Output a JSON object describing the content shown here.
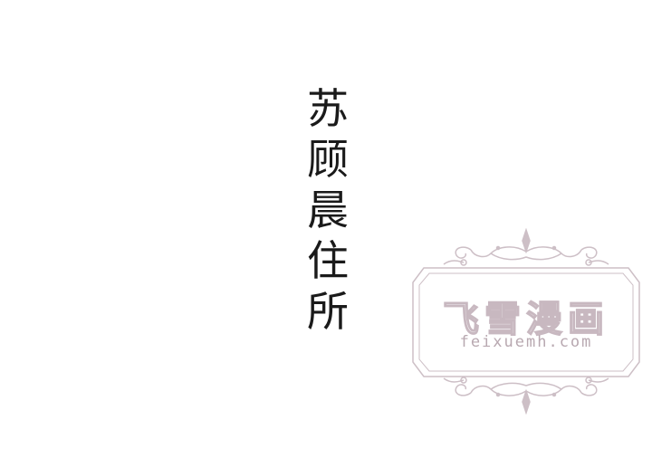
{
  "caption": {
    "chars": [
      "苏",
      "顾",
      "晨",
      "住",
      "所"
    ]
  },
  "watermark": {
    "title": "飞雪漫画",
    "url": "feixuemh.com",
    "color": "#c8b8c0"
  }
}
